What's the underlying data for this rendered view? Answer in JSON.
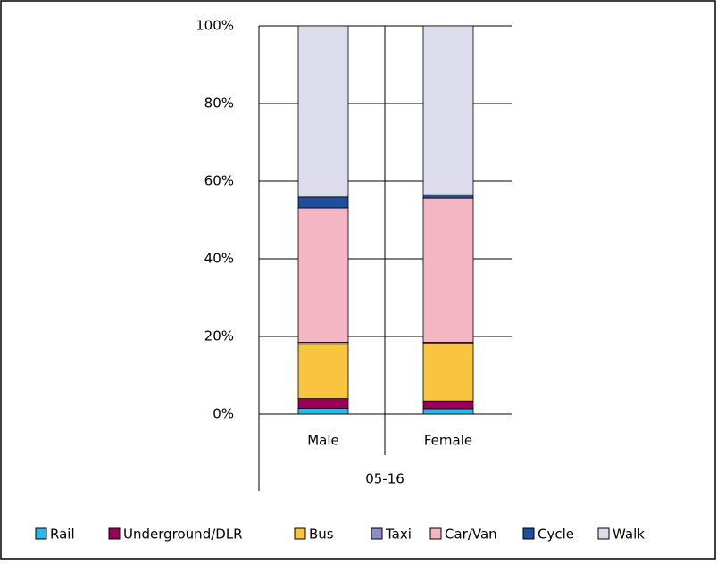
{
  "chart_data": {
    "type": "bar",
    "stacked": true,
    "grid": true,
    "legend": "bottom",
    "categories": [
      "Male",
      "Female"
    ],
    "group_label": "05-16",
    "ylim": [
      0,
      100
    ],
    "yticks": [
      {
        "value": 0,
        "label": "0%"
      },
      {
        "value": 20,
        "label": "20%"
      },
      {
        "value": 40,
        "label": "40%"
      },
      {
        "value": 60,
        "label": "60%"
      },
      {
        "value": 80,
        "label": "80%"
      },
      {
        "value": 100,
        "label": "100%"
      }
    ],
    "series": [
      {
        "name": "Rail",
        "color": "#29b6e8",
        "values": [
          1.5,
          1.4
        ]
      },
      {
        "name": "Underground/DLR",
        "color": "#990055",
        "values": [
          2.5,
          2.0
        ]
      },
      {
        "name": "Bus",
        "color": "#f9c440",
        "values": [
          14,
          14.8
        ]
      },
      {
        "name": "Taxi",
        "color": "#8a8fc8",
        "values": [
          0.5,
          0.3
        ]
      },
      {
        "name": "Car/Van",
        "color": "#f4b6c2",
        "values": [
          34.6,
          37.1
        ]
      },
      {
        "name": "Cycle",
        "color": "#1f4e9c",
        "values": [
          2.8,
          0.9
        ]
      },
      {
        "name": "Walk",
        "color": "#dcdcec",
        "values": [
          44.1,
          43.5
        ]
      }
    ]
  }
}
